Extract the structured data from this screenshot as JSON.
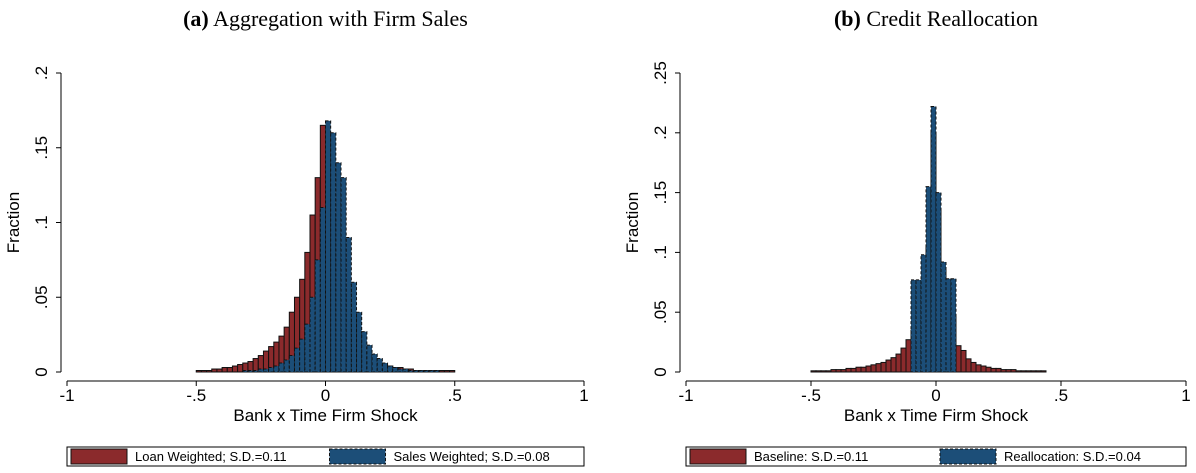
{
  "chart_data": [
    {
      "type": "histogram",
      "label": "(a)",
      "title": "Aggregation with Firm Sales",
      "x_label": "Bank x Time Firm Shock",
      "y_label": "Fraction",
      "xlim": [
        -1,
        1
      ],
      "ylim": [
        0,
        0.2
      ],
      "xticks": [
        {
          "value": -1,
          "label": "-1"
        },
        {
          "value": -0.5,
          "label": "-.5"
        },
        0,
        {
          "value": 0.5,
          "label": ".5"
        },
        1
      ],
      "yticks": [
        0,
        {
          "value": 0.05,
          "label": ".05"
        },
        {
          "value": 0.1,
          "label": ".1"
        },
        {
          "value": 0.15,
          "label": ".15"
        },
        {
          "value": 0.2,
          "label": ".2"
        }
      ],
      "series": [
        {
          "name": "Loan Weighted; S.D.=0.11",
          "color": "#8b2a2c",
          "edge_style": "solid",
          "bins": [
            -0.5,
            -0.48,
            -0.46,
            -0.44,
            -0.42,
            -0.4,
            -0.38,
            -0.36,
            -0.34,
            -0.32,
            -0.3,
            -0.28,
            -0.26,
            -0.24,
            -0.22,
            -0.2,
            -0.18,
            -0.16,
            -0.14,
            -0.12,
            -0.1,
            -0.08,
            -0.06,
            -0.04,
            -0.02,
            0,
            0.02,
            0.04,
            0.06,
            0.08,
            0.1,
            0.12,
            0.14,
            0.16,
            0.18,
            0.2,
            0.22,
            0.24,
            0.26,
            0.28,
            0.3,
            0.32,
            0.34,
            0.36,
            0.38,
            0.4,
            0.42,
            0.44,
            0.46,
            0.48,
            0.5
          ],
          "values": [
            0.001,
            0.001,
            0.001,
            0.002,
            0.002,
            0.003,
            0.003,
            0.004,
            0.005,
            0.006,
            0.007,
            0.009,
            0.011,
            0.014,
            0.017,
            0.02,
            0.024,
            0.03,
            0.04,
            0.05,
            0.062,
            0.08,
            0.105,
            0.13,
            0.165,
            0.14,
            0.105,
            0.075,
            0.052,
            0.036,
            0.026,
            0.019,
            0.014,
            0.01,
            0.008,
            0.006,
            0.005,
            0.004,
            0.003,
            0.003,
            0.002,
            0.002,
            0.001,
            0.001,
            0.001,
            0.001,
            0.001,
            0.001,
            0.001,
            0.001
          ]
        },
        {
          "name": "Sales Weighted; S.D.=0.08",
          "color": "#1c4e78",
          "edge_style": "dashed",
          "bins": [
            -0.5,
            -0.48,
            -0.46,
            -0.44,
            -0.42,
            -0.4,
            -0.38,
            -0.36,
            -0.34,
            -0.32,
            -0.3,
            -0.28,
            -0.26,
            -0.24,
            -0.22,
            -0.2,
            -0.18,
            -0.16,
            -0.14,
            -0.12,
            -0.1,
            -0.08,
            -0.06,
            -0.04,
            -0.02,
            0,
            0.02,
            0.04,
            0.06,
            0.08,
            0.1,
            0.12,
            0.14,
            0.16,
            0.18,
            0.2,
            0.22,
            0.24,
            0.26,
            0.28,
            0.3,
            0.32,
            0.34,
            0.36,
            0.38,
            0.4,
            0.42,
            0.44,
            0.46,
            0.48,
            0.5
          ],
          "values": [
            0,
            0,
            0,
            0,
            0,
            0,
            0,
            0,
            0,
            0.001,
            0.001,
            0.001,
            0.002,
            0.002,
            0.003,
            0.004,
            0.006,
            0.008,
            0.011,
            0.016,
            0.022,
            0.032,
            0.05,
            0.075,
            0.11,
            0.168,
            0.16,
            0.14,
            0.13,
            0.09,
            0.06,
            0.04,
            0.027,
            0.018,
            0.012,
            0.009,
            0.006,
            0.004,
            0.003,
            0.002,
            0.002,
            0.001,
            0.001,
            0.001,
            0.001,
            0.001,
            0.001,
            0,
            0,
            0
          ]
        }
      ]
    },
    {
      "type": "histogram",
      "label": "(b)",
      "title": "Credit Reallocation",
      "x_label": "Bank x Time Firm Shock",
      "y_label": "Fraction",
      "xlim": [
        -1,
        1
      ],
      "ylim": [
        0,
        0.25
      ],
      "xticks": [
        {
          "value": -1,
          "label": "-1"
        },
        {
          "value": -0.5,
          "label": "-.5"
        },
        0,
        {
          "value": 0.5,
          "label": ".5"
        },
        1
      ],
      "yticks": [
        0,
        {
          "value": 0.05,
          "label": ".05"
        },
        {
          "value": 0.1,
          "label": ".1"
        },
        {
          "value": 0.15,
          "label": ".15"
        },
        {
          "value": 0.2,
          "label": ".2"
        },
        {
          "value": 0.25,
          "label": ".25"
        }
      ],
      "series": [
        {
          "name": "Baseline: S.D.=0.11",
          "color": "#8b2a2c",
          "edge_style": "solid",
          "bins": [
            -0.5,
            -0.48,
            -0.46,
            -0.44,
            -0.42,
            -0.4,
            -0.38,
            -0.36,
            -0.34,
            -0.32,
            -0.3,
            -0.28,
            -0.26,
            -0.24,
            -0.22,
            -0.2,
            -0.18,
            -0.16,
            -0.14,
            -0.12,
            -0.1,
            -0.08,
            -0.06,
            -0.04,
            -0.02,
            0,
            0.02,
            0.04,
            0.06,
            0.08,
            0.1,
            0.12,
            0.14,
            0.16,
            0.18,
            0.2,
            0.22,
            0.24,
            0.26,
            0.28,
            0.3,
            0.32,
            0.34,
            0.36,
            0.38,
            0.4,
            0.42,
            0.44,
            0.46,
            0.48,
            0.5
          ],
          "values": [
            0.001,
            0.001,
            0.001,
            0.001,
            0.002,
            0.002,
            0.002,
            0.003,
            0.003,
            0.004,
            0.004,
            0.005,
            0.006,
            0.007,
            0.008,
            0.01,
            0.012,
            0.015,
            0.02,
            0.027,
            0.035,
            0.045,
            0.075,
            0.105,
            0.2,
            0.135,
            0.087,
            0.055,
            0.046,
            0.022,
            0.018,
            0.011,
            0.008,
            0.006,
            0.005,
            0.004,
            0.003,
            0.003,
            0.002,
            0.002,
            0.002,
            0.001,
            0.001,
            0.001,
            0.001,
            0.001,
            0.001,
            0,
            0,
            0
          ]
        },
        {
          "name": "Reallocation: S.D.=0.04",
          "color": "#1c4e78",
          "edge_style": "dashed",
          "bins": [
            -0.1,
            -0.08,
            -0.06,
            -0.04,
            -0.02,
            0,
            0.02,
            0.04,
            0.06,
            0.08
          ],
          "values": [
            0.077,
            0.077,
            0.098,
            0.155,
            0.222,
            0.15,
            0.092,
            0.078,
            0.078
          ]
        }
      ]
    }
  ]
}
